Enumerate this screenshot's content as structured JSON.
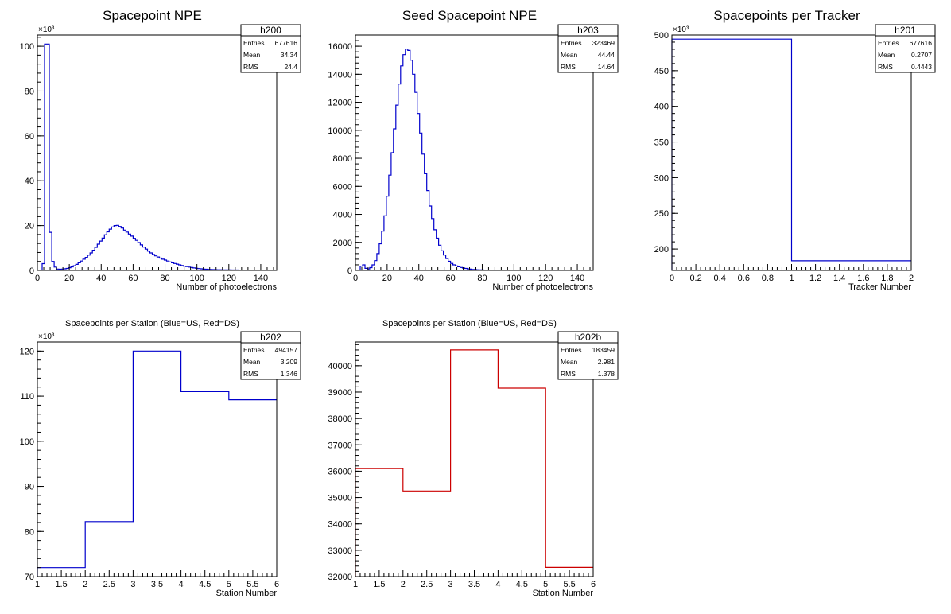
{
  "chart_data": [
    {
      "type": "bar",
      "title": "Spacepoint NPE",
      "xlabel": "Number of photoelectrons",
      "ylabel": "",
      "y_multiplier_label": "×10³",
      "line_color": "#0000cc",
      "xlim": [
        0,
        150
      ],
      "ylim": [
        0,
        105000
      ],
      "xticks": [
        0,
        20,
        40,
        60,
        80,
        100,
        120,
        140
      ],
      "xtick_labels": [
        "0",
        "20",
        "40",
        "60",
        "80",
        "100",
        "120",
        "140"
      ],
      "yticks": [
        0,
        20000,
        40000,
        60000,
        80000,
        100000
      ],
      "ytick_labels": [
        "0",
        "20",
        "40",
        "60",
        "80",
        "100"
      ],
      "bin_width": 1.5,
      "x_start": 3,
      "values": [
        3000,
        101000,
        101000,
        17000,
        4000,
        1500,
        600,
        500,
        600,
        700,
        900,
        1200,
        1600,
        2100,
        2700,
        3400,
        4200,
        5000,
        5800,
        6800,
        7800,
        9000,
        10300,
        11700,
        13100,
        14400,
        15900,
        17200,
        18400,
        19400,
        20000,
        20100,
        19600,
        18900,
        18000,
        17100,
        16200,
        15300,
        14300,
        13400,
        12400,
        11400,
        10400,
        9500,
        8600,
        7800,
        7100,
        6500,
        6000,
        5500,
        5000,
        4600,
        4200,
        3800,
        3400,
        3100,
        2800,
        2500,
        2200,
        1900,
        1700,
        1500,
        1300,
        1100,
        950,
        800,
        700,
        600,
        520,
        450,
        400,
        350,
        320,
        290,
        270,
        250,
        230,
        210,
        200,
        190,
        180,
        160,
        150
      ],
      "stats": {
        "name": "h200",
        "entries_label": "Entries",
        "entries": "677616",
        "mean_label": "Mean",
        "mean": "34.34",
        "rms_label": "RMS",
        "rms": "24.4"
      }
    },
    {
      "type": "bar",
      "title": "Seed Spacepoint NPE",
      "xlabel": "Number of photoelectrons",
      "ylabel": "",
      "y_multiplier_label": "",
      "line_color": "#0000cc",
      "xlim": [
        0,
        150
      ],
      "ylim": [
        0,
        16800
      ],
      "xticks": [
        0,
        20,
        40,
        60,
        80,
        100,
        120,
        140
      ],
      "xtick_labels": [
        "0",
        "20",
        "40",
        "60",
        "80",
        "100",
        "120",
        "140"
      ],
      "yticks": [
        0,
        2000,
        4000,
        6000,
        8000,
        10000,
        12000,
        14000,
        16000
      ],
      "ytick_labels": [
        "0",
        "2000",
        "4000",
        "6000",
        "8000",
        "10000",
        "12000",
        "14000",
        "16000"
      ],
      "bin_width": 1.5,
      "x_start": 3,
      "values": [
        300,
        400,
        150,
        100,
        200,
        400,
        700,
        1200,
        1900,
        2800,
        3900,
        5300,
        6800,
        8400,
        10100,
        11800,
        13300,
        14600,
        15400,
        15800,
        15700,
        15000,
        14000,
        12700,
        11200,
        9800,
        8300,
        6900,
        5700,
        4600,
        3700,
        2900,
        2300,
        1800,
        1400,
        1100,
        850,
        650,
        500,
        400,
        320,
        260,
        210,
        170,
        140,
        110,
        90,
        70,
        55,
        45,
        35,
        28,
        22,
        18,
        14,
        11,
        9,
        7,
        5,
        4
      ],
      "stats": {
        "name": "h203",
        "entries_label": "Entries",
        "entries": "323469",
        "mean_label": "Mean",
        "mean": "44.44",
        "rms_label": "RMS",
        "rms": "14.64"
      }
    },
    {
      "type": "bar",
      "title": "Spacepoints per Tracker",
      "xlabel": "Tracker Number",
      "ylabel": "",
      "y_multiplier_label": "×10³",
      "line_color": "#0000cc",
      "xlim": [
        0,
        2
      ],
      "ylim": [
        170000,
        500000
      ],
      "xticks": [
        0,
        0.2,
        0.4,
        0.6,
        0.8,
        1,
        1.2,
        1.4,
        1.6,
        1.8,
        2
      ],
      "xtick_labels": [
        "0",
        "0.2",
        "0.4",
        "0.6",
        "0.8",
        "1",
        "1.2",
        "1.4",
        "1.6",
        "1.8",
        "2"
      ],
      "yticks": [
        200000,
        250000,
        300000,
        350000,
        400000,
        450000,
        500000
      ],
      "ytick_labels": [
        "200",
        "250",
        "300",
        "350",
        "400",
        "450",
        "500"
      ],
      "bin_width": 1,
      "x_start": 0,
      "values": [
        494157,
        183459
      ],
      "stats": {
        "name": "h201",
        "entries_label": "Entries",
        "entries": "677616",
        "mean_label": "Mean",
        "mean": "0.2707",
        "rms_label": "RMS",
        "rms": "0.4443"
      }
    },
    {
      "type": "bar",
      "title": "Spacepoints per Station (Blue=US, Red=DS)",
      "xlabel": "Station Number",
      "ylabel": "",
      "y_multiplier_label": "×10³",
      "line_color": "#0000cc",
      "xlim": [
        1,
        6
      ],
      "ylim": [
        70000,
        122000
      ],
      "xticks": [
        1,
        1.5,
        2,
        2.5,
        3,
        3.5,
        4,
        4.5,
        5,
        5.5,
        6
      ],
      "xtick_labels": [
        "1",
        "1.5",
        "2",
        "2.5",
        "3",
        "3.5",
        "4",
        "4.5",
        "5",
        "5.5",
        "6"
      ],
      "yticks": [
        70000,
        80000,
        90000,
        100000,
        110000,
        120000
      ],
      "ytick_labels": [
        "70",
        "80",
        "90",
        "100",
        "110",
        "120"
      ],
      "bin_width": 1,
      "x_start": 1,
      "values": [
        72000,
        82200,
        120000,
        111000,
        109200
      ],
      "stats": {
        "name": "h202",
        "entries_label": "Entries",
        "entries": "494157",
        "mean_label": "Mean",
        "mean": "3.209",
        "rms_label": "RMS",
        "rms": "1.346"
      }
    },
    {
      "type": "bar",
      "title": "Spacepoints per Station (Blue=US, Red=DS)",
      "xlabel": "Station Number",
      "ylabel": "",
      "y_multiplier_label": "",
      "line_color": "#cc0000",
      "xlim": [
        1,
        6
      ],
      "ylim": [
        32000,
        40900
      ],
      "xticks": [
        1,
        1.5,
        2,
        2.5,
        3,
        3.5,
        4,
        4.5,
        5,
        5.5,
        6
      ],
      "xtick_labels": [
        "1",
        "1.5",
        "2",
        "2.5",
        "3",
        "3.5",
        "4",
        "4.5",
        "5",
        "5.5",
        "6"
      ],
      "yticks": [
        32000,
        33000,
        34000,
        35000,
        36000,
        37000,
        38000,
        39000,
        40000
      ],
      "ytick_labels": [
        "32000",
        "33000",
        "34000",
        "35000",
        "36000",
        "37000",
        "38000",
        "39000",
        "40000"
      ],
      "bin_width": 1,
      "x_start": 1,
      "values": [
        36100,
        35250,
        40600,
        39150,
        32350
      ],
      "stats": {
        "name": "h202b",
        "entries_label": "Entries",
        "entries": "183459",
        "mean_label": "Mean",
        "mean": "2.981",
        "rms_label": "RMS",
        "rms": "1.378"
      }
    }
  ]
}
